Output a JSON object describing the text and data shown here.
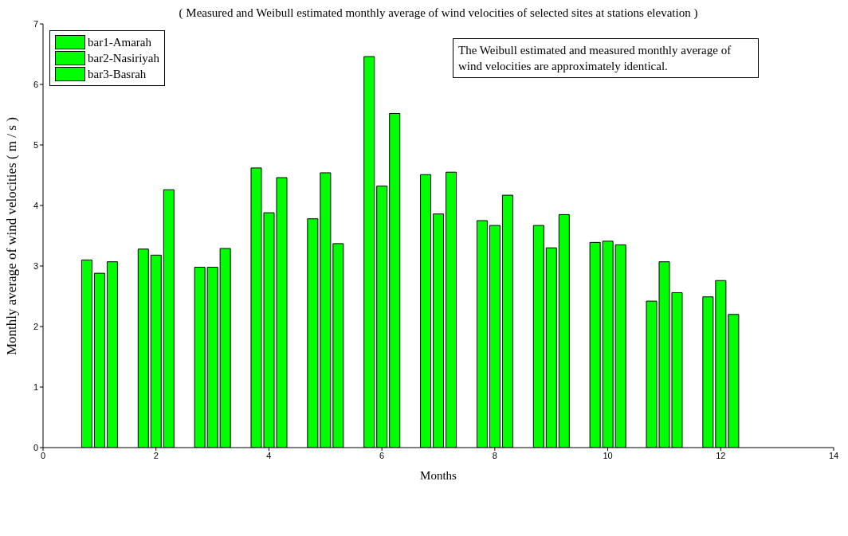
{
  "chart_data": {
    "type": "bar",
    "title": "( Measured and Weibull estimated monthly average of wind velocities of selected sites at stations elevation )",
    "xlabel": "Months",
    "ylabel": "Monthly average of wind velocities ( m / s )",
    "annotations": [
      "The Weibull estimated and measured monthly average of wind velocities are approximately identical."
    ],
    "x": [
      1,
      2,
      3,
      4,
      5,
      6,
      7,
      8,
      9,
      10,
      11,
      12
    ],
    "series": [
      {
        "name": "bar1-Amarah",
        "color": "#00ff00",
        "values": [
          3.1,
          3.28,
          2.98,
          4.62,
          3.78,
          6.46,
          4.51,
          3.75,
          3.67,
          3.39,
          2.42,
          2.49
        ]
      },
      {
        "name": "bar2-Nasiriyah",
        "color": "#00ff00",
        "values": [
          2.88,
          3.18,
          2.98,
          3.88,
          4.54,
          4.32,
          3.86,
          3.67,
          3.3,
          3.41,
          3.07,
          2.76
        ]
      },
      {
        "name": "bar3-Basrah",
        "color": "#00ff00",
        "values": [
          3.07,
          4.26,
          3.29,
          4.46,
          3.37,
          5.52,
          4.55,
          4.17,
          3.85,
          3.35,
          2.56,
          2.2
        ]
      }
    ],
    "xlim": [
      0,
      14
    ],
    "xticks": [
      0,
      2,
      4,
      6,
      8,
      10,
      12,
      14
    ],
    "ylim": [
      0,
      7
    ],
    "yticks": [
      0,
      1,
      2,
      3,
      4,
      5,
      6,
      7
    ],
    "legend": "top left",
    "grid": false
  }
}
